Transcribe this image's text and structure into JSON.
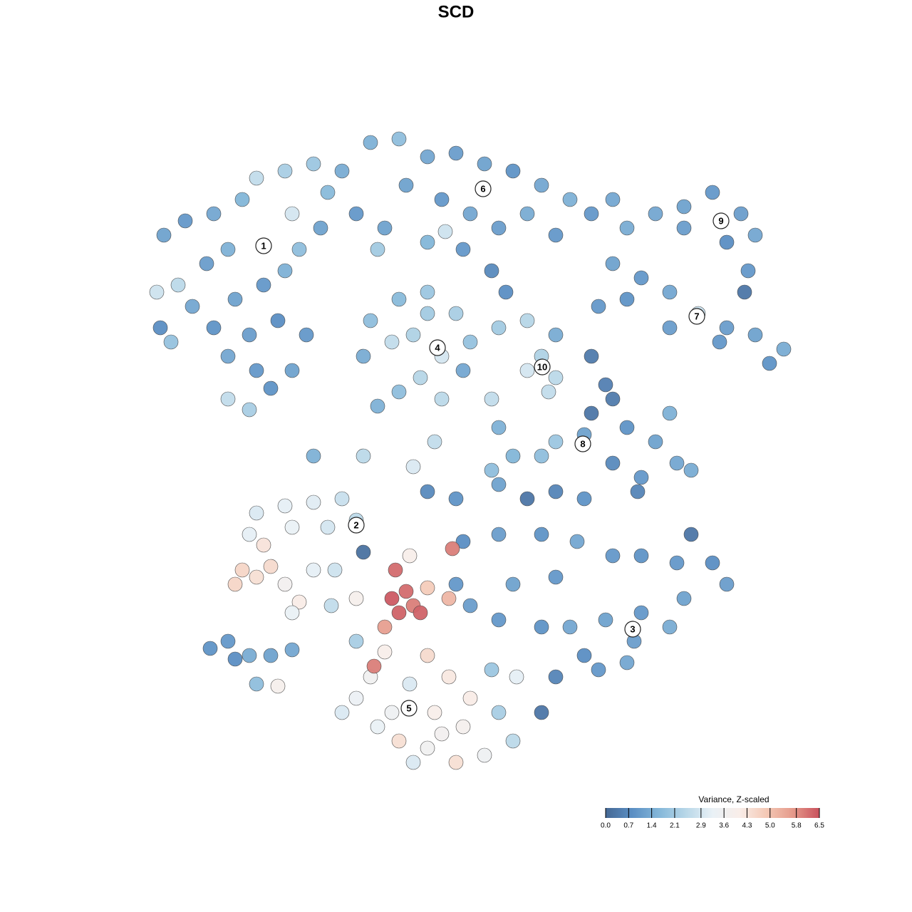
{
  "chart_data": {
    "type": "scatter",
    "title": "SCD",
    "xlim": [
      190,
      1140
    ],
    "ylim": [
      1100,
      180
    ],
    "x": [
      230,
      260,
      300,
      340,
      360,
      400,
      440,
      480,
      320,
      290,
      250,
      220,
      270,
      300,
      330,
      370,
      400,
      420,
      450,
      500,
      350,
      390,
      320,
      360,
      320,
      350,
      380,
      410,
      430,
      240,
      225,
      410,
      460,
      520,
      560,
      600,
      640,
      680,
      720,
      760,
      800,
      830,
      570,
      620,
      660,
      700,
      740,
      780,
      540,
      600,
      650,
      690,
      710,
      530,
      625,
      880,
      920,
      960,
      1000,
      1040,
      1060,
      1020,
      960,
      1050,
      1045,
      860,
      860,
      900,
      940,
      980,
      1020,
      1060,
      1100,
      1080,
      840,
      880,
      1010,
      940,
      520,
      560,
      600,
      640,
      660,
      620,
      590,
      560,
      530,
      510,
      550,
      580,
      620,
      650,
      700,
      740,
      600,
      760,
      780,
      740,
      770,
      780,
      830,
      850,
      830,
      860,
      880,
      920,
      950,
      900,
      940,
      970,
      780,
      820,
      760,
      720,
      690,
      860,
      895,
      440,
      510,
      610,
      580,
      700,
      690,
      600,
      640,
      700,
      740,
      780,
      820,
      650,
      700,
      760,
      810,
      860,
      900,
      950,
      1000,
      1020,
      960,
      900,
      850,
      800,
      760,
      700,
      660,
      890,
      940,
      820,
      780,
      840,
      880,
      720,
      640,
      780,
      970,
      760,
      360,
      400,
      440,
      480,
      500,
      460,
      410,
      350,
      370,
      340,
      360,
      380,
      330,
      400,
      420,
      440,
      410,
      470,
      465,
      550,
      570,
      560,
      540,
      580,
      590,
      555,
      635,
      630,
      600,
      575,
      500,
      510,
      500,
      540,
      520,
      500,
      480,
      530,
      560,
      600,
      640,
      680,
      720,
      700,
      660,
      630,
      600,
      575,
      550,
      610,
      650,
      690,
      725,
      525,
      580,
      620,
      295,
      320,
      350,
      380,
      360,
      390,
      410,
      330
    ],
    "y": [
      330,
      310,
      300,
      280,
      250,
      240,
      230,
      240,
      350,
      370,
      400,
      410,
      430,
      460,
      420,
      400,
      380,
      350,
      320,
      300,
      470,
      450,
      500,
      520,
      560,
      575,
      545,
      520,
      470,
      480,
      460,
      300,
      270,
      200,
      195,
      220,
      215,
      230,
      240,
      260,
      280,
      300,
      260,
      280,
      300,
      320,
      300,
      330,
      320,
      340,
      350,
      380,
      410,
      350,
      325,
      320,
      300,
      290,
      270,
      300,
      330,
      340,
      320,
      380,
      410,
      280,
      370,
      390,
      410,
      440,
      460,
      470,
      490,
      510,
      430,
      420,
      480,
      460,
      450,
      420,
      410,
      440,
      480,
      500,
      530,
      550,
      570,
      500,
      480,
      470,
      560,
      520,
      460,
      450,
      440,
      500,
      530,
      520,
      550,
      470,
      500,
      540,
      580,
      560,
      600,
      620,
      650,
      670,
      580,
      660,
      620,
      610,
      640,
      640,
      660,
      650,
      690,
      640,
      640,
      620,
      655,
      600,
      560,
      690,
      700,
      680,
      700,
      690,
      700,
      760,
      750,
      750,
      760,
      780,
      780,
      790,
      790,
      820,
      840,
      860,
      870,
      880,
      880,
      870,
      850,
      900,
      880,
      920,
      950,
      940,
      930,
      820,
      820,
      810,
      750,
      1000,
      720,
      710,
      705,
      700,
      730,
      740,
      740,
      750,
      765,
      800,
      810,
      795,
      820,
      820,
      845,
      800,
      860,
      800,
      850,
      840,
      830,
      860,
      880,
      850,
      860,
      800,
      770,
      840,
      825,
      780,
      840,
      775,
      900,
      915,
      950,
      980,
      1000,
      1020,
      1040,
      1050,
      1070,
      1060,
      1040,
      1000,
      980,
      950,
      920,
      960,
      1000,
      1000,
      1020,
      940,
      950,
      935,
      1070,
      1030,
      910,
      900,
      920,
      920,
      960,
      963,
      912,
      925
    ],
    "values": [
      1.2,
      1.0,
      1.3,
      1.6,
      2.6,
      2.2,
      2.0,
      1.4,
      1.5,
      1.1,
      2.5,
      2.8,
      1.3,
      0.9,
      1.2,
      1.0,
      1.5,
      1.8,
      1.2,
      1.0,
      1.1,
      0.8,
      1.3,
      1.0,
      2.6,
      2.2,
      0.9,
      1.2,
      1.0,
      1.9,
      0.8,
      2.9,
      1.7,
      1.5,
      1.8,
      1.3,
      1.1,
      1.2,
      0.9,
      1.3,
      1.5,
      1.0,
      1.2,
      1.0,
      1.3,
      1.1,
      1.4,
      1.0,
      1.2,
      1.6,
      1.0,
      0.7,
      0.8,
      2.1,
      2.8,
      1.4,
      1.3,
      1.2,
      1.0,
      1.1,
      1.3,
      0.8,
      1.1,
      1.0,
      0.3,
      1.3,
      1.2,
      1.0,
      1.3,
      2.7,
      1.1,
      1.2,
      1.4,
      0.9,
      1.0,
      0.9,
      1.0,
      1.1,
      1.8,
      1.7,
      2.0,
      2.2,
      1.9,
      2.9,
      2.4,
      1.8,
      1.5,
      1.4,
      2.6,
      2.3,
      2.5,
      1.3,
      2.1,
      2.4,
      2.1,
      2.3,
      2.5,
      2.9,
      2.6,
      1.4,
      0.4,
      0.5,
      0.3,
      0.4,
      0.9,
      1.2,
      1.3,
      1.0,
      1.5,
      1.4,
      2.0,
      1.2,
      1.8,
      1.6,
      1.8,
      0.7,
      0.6,
      1.5,
      2.5,
      2.6,
      3.0,
      1.5,
      2.6,
      0.7,
      0.9,
      1.2,
      0.3,
      0.6,
      0.9,
      0.8,
      1.1,
      0.9,
      1.3,
      1.0,
      0.9,
      1.0,
      0.8,
      1.1,
      1.2,
      1.0,
      1.2,
      1.3,
      0.9,
      1.0,
      1.1,
      1.1,
      1.4,
      0.8,
      0.6,
      1.0,
      1.3,
      1.2,
      1.0,
      1.0,
      0.3,
      0.3,
      3.0,
      3.2,
      3.1,
      2.7,
      2.5,
      2.9,
      3.3,
      3.2,
      4.3,
      4.6,
      4.4,
      4.5,
      4.6,
      3.7,
      4.1,
      3.2,
      3.3,
      2.8,
      2.6,
      6.4,
      6.2,
      6.3,
      5.6,
      6.0,
      6.3,
      6.2,
      6.0,
      5.2,
      4.8,
      4.0,
      3.9,
      0.2,
      2.2,
      4.0,
      3.6,
      3.4,
      3.0,
      3.3,
      4.4,
      3.6,
      4.4,
      3.5,
      2.5,
      2.2,
      4.1,
      4.2,
      4.5,
      3.0,
      3.5,
      4.0,
      3.8,
      2.0,
      3.2,
      6.0,
      3.0,
      3.7,
      0.9,
      1.0,
      1.4,
      1.2,
      1.8,
      3.9,
      1.3,
      0.8
    ],
    "cluster_labels": [
      {
        "label": "1",
        "x": 370,
        "y": 345
      },
      {
        "label": "2",
        "x": 500,
        "y": 737
      },
      {
        "label": "3",
        "x": 888,
        "y": 883
      },
      {
        "label": "4",
        "x": 614,
        "y": 488
      },
      {
        "label": "5",
        "x": 574,
        "y": 994
      },
      {
        "label": "6",
        "x": 678,
        "y": 265
      },
      {
        "label": "7",
        "x": 978,
        "y": 444
      },
      {
        "label": "8",
        "x": 818,
        "y": 623
      },
      {
        "label": "9",
        "x": 1012,
        "y": 310
      },
      {
        "label": "10",
        "x": 761,
        "y": 515
      }
    ],
    "colorbar": {
      "title": "Variance, Z-scaled",
      "lim": [
        0,
        6.5
      ],
      "colors": [
        "#456894",
        "#5b8fc4",
        "#84b7d9",
        "#b8d7e8",
        "#e9f1f6",
        "#f9eee9",
        "#f4c9b6",
        "#e59a8b",
        "#c9515d"
      ],
      "ticks": [
        {
          "value": 0,
          "label": "0.0"
        },
        0.7,
        1.4,
        2.1,
        2.9,
        3.6,
        4.3,
        {
          "value": 5,
          "label": "5.0"
        },
        5.8,
        6.5
      ]
    }
  }
}
